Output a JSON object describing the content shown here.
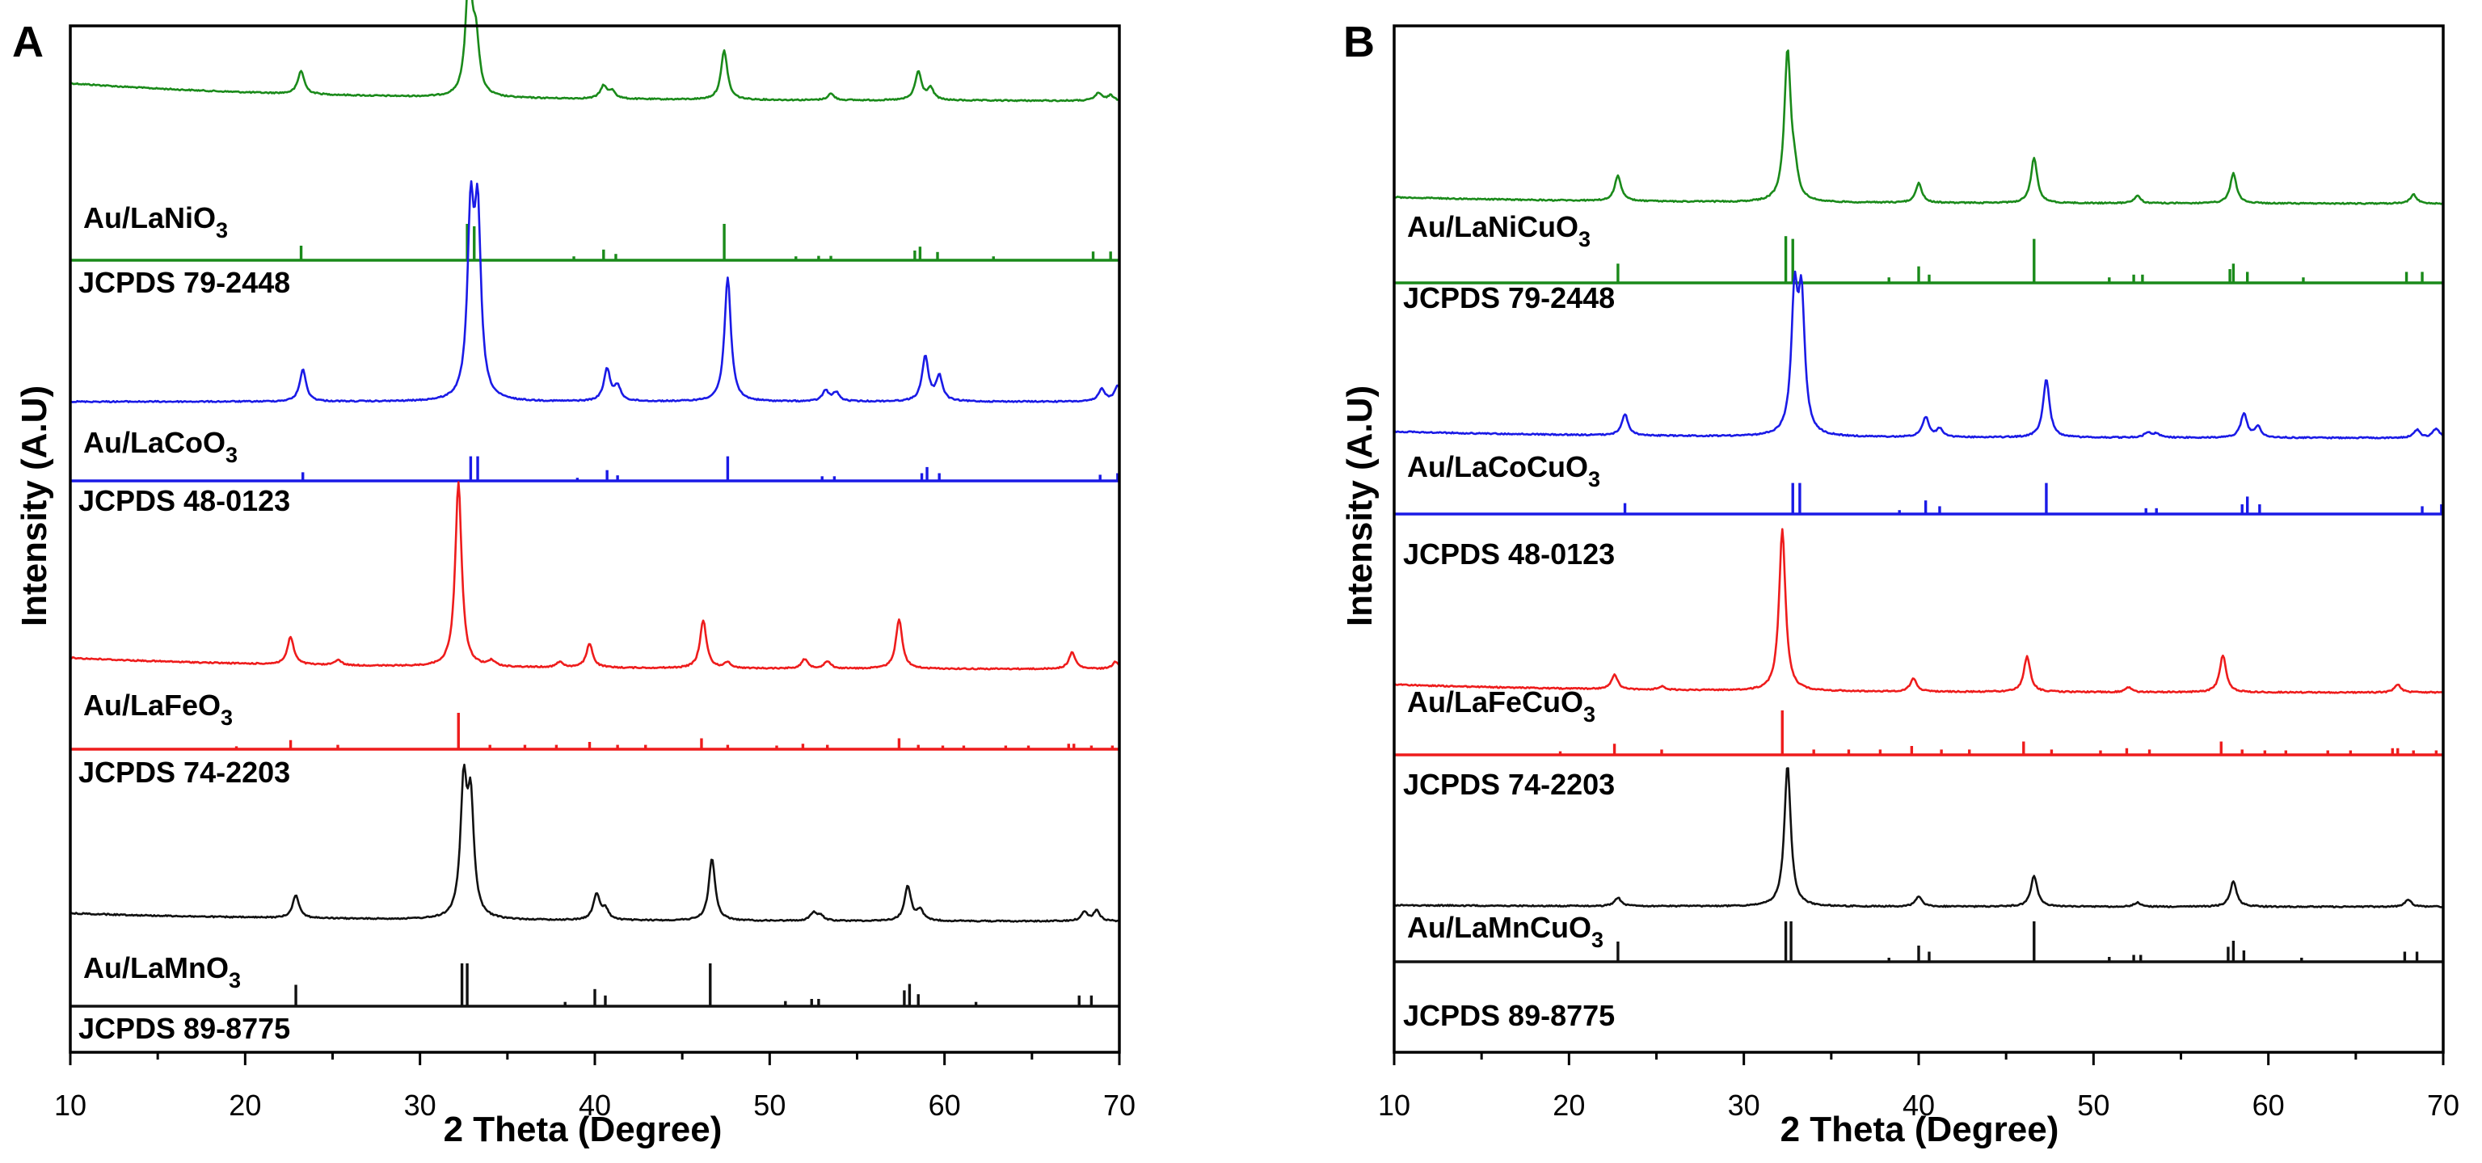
{
  "chart_data": [
    {
      "type": "line",
      "panel": "A",
      "xlabel": "2 Theta (Degree)",
      "ylabel": "Intensity (A.U)",
      "xlim": [
        10,
        70
      ],
      "xticks": [
        10,
        20,
        30,
        40,
        50,
        60,
        70
      ],
      "series": [
        {
          "name": "Au/LaNiO3",
          "label_main": "Au/LaNiO",
          "label_sub": "3",
          "reference": "JCPDS 79-2448",
          "color": "#1a8a1a",
          "peaks": [
            [
              23.2,
              18
            ],
            [
              32.8,
              95
            ],
            [
              33.2,
              40
            ],
            [
              40.5,
              10
            ],
            [
              41.0,
              6
            ],
            [
              47.4,
              38
            ],
            [
              53.5,
              5
            ],
            [
              58.5,
              22
            ],
            [
              59.2,
              9
            ],
            [
              68.8,
              6
            ],
            [
              69.5,
              4
            ]
          ],
          "ref_lines": [
            [
              23.2,
              30
            ],
            [
              32.7,
              75
            ],
            [
              33.1,
              70
            ],
            [
              38.8,
              8
            ],
            [
              40.5,
              22
            ],
            [
              41.2,
              13
            ],
            [
              47.4,
              75
            ],
            [
              51.5,
              8
            ],
            [
              52.8,
              9
            ],
            [
              53.5,
              9
            ],
            [
              58.3,
              20
            ],
            [
              58.6,
              28
            ],
            [
              59.6,
              17
            ],
            [
              62.8,
              8
            ],
            [
              68.5,
              18
            ],
            [
              69.5,
              18
            ]
          ]
        },
        {
          "name": "Au/LaCoO3",
          "label_main": "Au/LaCoO",
          "label_sub": "3",
          "reference": "JCPDS 48-0123",
          "color": "#1a1ae6",
          "peaks": [
            [
              23.3,
              18
            ],
            [
              32.9,
              100
            ],
            [
              33.3,
              98
            ],
            [
              40.7,
              18
            ],
            [
              41.3,
              8
            ],
            [
              47.6,
              70
            ],
            [
              53.2,
              6
            ],
            [
              53.8,
              5
            ],
            [
              58.9,
              25
            ],
            [
              59.7,
              14
            ],
            [
              69.0,
              7
            ],
            [
              69.9,
              9
            ]
          ],
          "ref_lines": [
            [
              23.3,
              28
            ],
            [
              32.9,
              80
            ],
            [
              33.3,
              80
            ],
            [
              39.0,
              10
            ],
            [
              40.7,
              35
            ],
            [
              41.3,
              18
            ],
            [
              47.6,
              80
            ],
            [
              53.0,
              15
            ],
            [
              53.7,
              15
            ],
            [
              58.7,
              25
            ],
            [
              59.0,
              45
            ],
            [
              59.7,
              25
            ],
            [
              68.9,
              20
            ],
            [
              69.9,
              25
            ]
          ]
        },
        {
          "name": "Au/LaFeO3",
          "label_main": "Au/LaFeO",
          "label_sub": "3",
          "reference": "JCPDS 74-2203",
          "color": "#ee1c1c",
          "peaks": [
            [
              22.6,
              15
            ],
            [
              25.3,
              3
            ],
            [
              32.2,
              100
            ],
            [
              34.1,
              3
            ],
            [
              38.0,
              3
            ],
            [
              39.7,
              13
            ],
            [
              46.2,
              26
            ],
            [
              47.6,
              3
            ],
            [
              52.0,
              5
            ],
            [
              53.3,
              4
            ],
            [
              57.4,
              27
            ],
            [
              67.3,
              9
            ],
            [
              69.8,
              4
            ]
          ],
          "ref_lines": [
            [
              19.5,
              8
            ],
            [
              22.6,
              25
            ],
            [
              25.3,
              12
            ],
            [
              32.2,
              100
            ],
            [
              34.0,
              12
            ],
            [
              36.0,
              12
            ],
            [
              37.8,
              12
            ],
            [
              39.7,
              20
            ],
            [
              41.3,
              12
            ],
            [
              42.9,
              12
            ],
            [
              46.1,
              30
            ],
            [
              47.6,
              12
            ],
            [
              50.4,
              10
            ],
            [
              51.9,
              15
            ],
            [
              53.3,
              12
            ],
            [
              57.4,
              30
            ],
            [
              58.5,
              12
            ],
            [
              59.9,
              10
            ],
            [
              61.1,
              10
            ],
            [
              63.5,
              10
            ],
            [
              64.8,
              10
            ],
            [
              67.1,
              15
            ],
            [
              67.4,
              15
            ],
            [
              68.4,
              10
            ],
            [
              69.6,
              10
            ]
          ]
        },
        {
          "name": "Au/LaMnO3",
          "label_main": "Au/LaMnO",
          "label_sub": "3",
          "reference": "JCPDS 89-8775",
          "color": "#111111",
          "peaks": [
            [
              22.9,
              18
            ],
            [
              32.5,
              100
            ],
            [
              32.9,
              85
            ],
            [
              40.1,
              20
            ],
            [
              40.6,
              8
            ],
            [
              46.7,
              48
            ],
            [
              52.5,
              6
            ],
            [
              52.9,
              4
            ],
            [
              57.9,
              27
            ],
            [
              58.6,
              8
            ],
            [
              68.0,
              7
            ],
            [
              68.7,
              8
            ]
          ],
          "ref_lines": [
            [
              22.9,
              50
            ],
            [
              32.4,
              100
            ],
            [
              32.7,
              100
            ],
            [
              38.3,
              10
            ],
            [
              40.0,
              40
            ],
            [
              40.6,
              25
            ],
            [
              46.6,
              100
            ],
            [
              50.9,
              12
            ],
            [
              52.4,
              17
            ],
            [
              52.8,
              17
            ],
            [
              57.7,
              37
            ],
            [
              58.0,
              52
            ],
            [
              58.5,
              28
            ],
            [
              61.8,
              10
            ],
            [
              67.7,
              25
            ],
            [
              68.4,
              25
            ]
          ]
        }
      ]
    },
    {
      "type": "line",
      "panel": "B",
      "xlabel": "2 Theta (Degree)",
      "ylabel": "Intensity (A.U)",
      "xlim": [
        10,
        70
      ],
      "xticks": [
        10,
        20,
        30,
        40,
        50,
        60,
        70
      ],
      "series": [
        {
          "name": "Au/LaNiCuO3",
          "label_main": "Au/LaNiCuO",
          "label_sub": "3",
          "reference": "JCPDS 79-2448",
          "color": "#1a8a1a",
          "peaks": [
            [
              22.8,
              17
            ],
            [
              32.5,
              100
            ],
            [
              32.9,
              15
            ],
            [
              40.0,
              13
            ],
            [
              46.6,
              30
            ],
            [
              52.5,
              5
            ],
            [
              58.0,
              20
            ],
            [
              68.3,
              6
            ]
          ],
          "ref_lines": [
            [
              22.8,
              35
            ],
            [
              32.4,
              85
            ],
            [
              32.8,
              80
            ],
            [
              38.3,
              10
            ],
            [
              40.0,
              30
            ],
            [
              40.6,
              15
            ],
            [
              46.6,
              80
            ],
            [
              50.9,
              10
            ],
            [
              52.3,
              15
            ],
            [
              52.8,
              15
            ],
            [
              57.8,
              25
            ],
            [
              58.0,
              35
            ],
            [
              58.8,
              20
            ],
            [
              62.0,
              10
            ],
            [
              67.9,
              20
            ],
            [
              68.8,
              20
            ]
          ]
        },
        {
          "name": "Au/LaCoCuO3",
          "label_main": "Au/LaCoCuO",
          "label_sub": "3",
          "reference": "JCPDS 48-0123",
          "color": "#1a1ae6",
          "peaks": [
            [
              23.2,
              16
            ],
            [
              32.9,
              100
            ],
            [
              33.3,
              97
            ],
            [
              40.4,
              15
            ],
            [
              41.2,
              6
            ],
            [
              47.3,
              44
            ],
            [
              53.1,
              4
            ],
            [
              53.6,
              3
            ],
            [
              58.6,
              18
            ],
            [
              59.4,
              8
            ],
            [
              68.5,
              6
            ],
            [
              69.6,
              7
            ]
          ],
          "ref_lines": [
            [
              23.2,
              28
            ],
            [
              32.8,
              80
            ],
            [
              33.2,
              80
            ],
            [
              38.9,
              10
            ],
            [
              40.4,
              35
            ],
            [
              41.2,
              20
            ],
            [
              47.3,
              80
            ],
            [
              53.0,
              15
            ],
            [
              53.6,
              15
            ],
            [
              58.5,
              25
            ],
            [
              58.8,
              45
            ],
            [
              59.5,
              25
            ],
            [
              68.8,
              20
            ],
            [
              69.9,
              25
            ]
          ]
        },
        {
          "name": "Au/LaFeCuO3",
          "label_main": "Au/LaFeCuO",
          "label_sub": "3",
          "reference": "JCPDS 74-2203",
          "color": "#ee1c1c",
          "peaks": [
            [
              22.6,
              9
            ],
            [
              25.3,
              2
            ],
            [
              32.2,
              100
            ],
            [
              39.7,
              8
            ],
            [
              46.2,
              22
            ],
            [
              52.0,
              3
            ],
            [
              57.4,
              23
            ],
            [
              67.4,
              5
            ]
          ],
          "ref_lines": [
            [
              19.5,
              8
            ],
            [
              22.6,
              25
            ],
            [
              25.3,
              12
            ],
            [
              32.2,
              100
            ],
            [
              34.0,
              12
            ],
            [
              36.0,
              12
            ],
            [
              37.8,
              12
            ],
            [
              39.6,
              20
            ],
            [
              41.3,
              12
            ],
            [
              42.9,
              12
            ],
            [
              46.0,
              30
            ],
            [
              47.6,
              12
            ],
            [
              50.4,
              10
            ],
            [
              51.9,
              15
            ],
            [
              53.2,
              12
            ],
            [
              57.3,
              30
            ],
            [
              58.5,
              12
            ],
            [
              59.8,
              10
            ],
            [
              61.0,
              10
            ],
            [
              63.4,
              10
            ],
            [
              64.7,
              10
            ],
            [
              67.1,
              15
            ],
            [
              67.4,
              15
            ],
            [
              68.3,
              10
            ],
            [
              69.6,
              10
            ]
          ]
        },
        {
          "name": "Au/LaMnCuO3",
          "label_main": "Au/LaMnCuO",
          "label_sub": "3",
          "reference": "JCPDS 89-8775",
          "color": "#111111",
          "peaks": [
            [
              22.8,
              6
            ],
            [
              32.5,
              100
            ],
            [
              40.0,
              7
            ],
            [
              46.6,
              22
            ],
            [
              52.5,
              3
            ],
            [
              58.0,
              18
            ],
            [
              68.0,
              5
            ]
          ],
          "ref_lines": [
            [
              22.8,
              50
            ],
            [
              32.4,
              100
            ],
            [
              32.7,
              100
            ],
            [
              38.3,
              10
            ],
            [
              40.0,
              40
            ],
            [
              40.6,
              25
            ],
            [
              46.6,
              100
            ],
            [
              50.9,
              12
            ],
            [
              52.3,
              17
            ],
            [
              52.7,
              17
            ],
            [
              57.7,
              37
            ],
            [
              58.0,
              52
            ],
            [
              58.6,
              28
            ],
            [
              61.9,
              10
            ],
            [
              67.8,
              25
            ],
            [
              68.5,
              25
            ]
          ]
        }
      ]
    }
  ]
}
